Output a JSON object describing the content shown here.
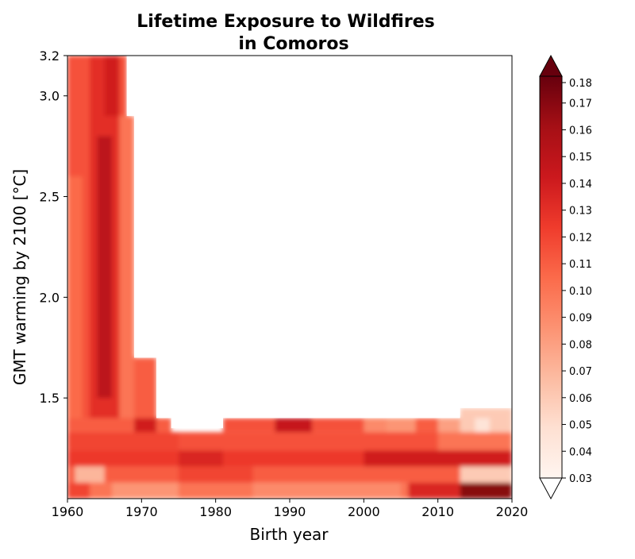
{
  "chart_data": {
    "type": "heatmap",
    "title_lines": [
      "Lifetime Exposure to Wildfires",
      "in Comoros"
    ],
    "xlabel": "Birth year",
    "ylabel": "GMT warming by 2100 [°C]",
    "xlim": [
      1960,
      2020
    ],
    "ylim": [
      1.0,
      3.2
    ],
    "x_ticks": [
      1960,
      1970,
      1980,
      1990,
      2000,
      2010,
      2020
    ],
    "x_tick_labels": [
      "1960",
      "1970",
      "1980",
      "1990",
      "2000",
      "2010",
      "2020"
    ],
    "y_ticks": [
      1.5,
      2.0,
      2.5,
      3.0,
      3.2
    ],
    "y_tick_labels": [
      "1.5",
      "2.0",
      "2.5",
      "3.0",
      "3.2"
    ],
    "colormap": "Reds",
    "colorbar": {
      "min": 0.03,
      "max": 0.18,
      "ticks": [
        0.03,
        0.04,
        0.05,
        0.06,
        0.07,
        0.08,
        0.09,
        0.1,
        0.11,
        0.12,
        0.13,
        0.14,
        0.15,
        0.16,
        0.17,
        0.18
      ],
      "tick_labels": [
        "0.03",
        "0.04",
        "0.05",
        "0.06",
        "0.07",
        "0.08",
        "0.09",
        "0.10",
        "0.11",
        "0.12",
        "0.13",
        "0.14",
        "0.15",
        "0.16",
        "0.17",
        "0.18"
      ],
      "extend": "both",
      "under_color": "#ffffff",
      "over_color": "#67000d"
    },
    "data_extent_note": "",
    "column_year_ranges": [
      [
        1960,
        1968,
        3.2
      ],
      [
        1968,
        1969,
        2.9
      ],
      [
        1969,
        1972,
        1.7
      ],
      [
        1972,
        1974,
        1.4
      ],
      [
        1974,
        1981,
        1.35
      ],
      [
        1981,
        2013,
        1.4
      ],
      [
        2013,
        2020,
        1.45
      ]
    ],
    "regions": [
      {
        "x": [
          1960,
          2020
        ],
        "y": [
          1.0,
          1.08
        ],
        "value": 0.1
      },
      {
        "x": [
          1960,
          1963
        ],
        "y": [
          1.0,
          1.08
        ],
        "value": 0.12
      },
      {
        "x": [
          1966,
          1975
        ],
        "y": [
          1.0,
          1.08
        ],
        "value": 0.085
      },
      {
        "x": [
          1985,
          2005
        ],
        "y": [
          1.0,
          1.08
        ],
        "value": 0.09
      },
      {
        "x": [
          2006,
          2013
        ],
        "y": [
          1.0,
          1.08
        ],
        "value": 0.135
      },
      {
        "x": [
          2013,
          2020
        ],
        "y": [
          1.0,
          1.08
        ],
        "value": 0.17
      },
      {
        "x": [
          1960,
          2020
        ],
        "y": [
          1.08,
          1.16
        ],
        "value": 0.11
      },
      {
        "x": [
          1961,
          1965
        ],
        "y": [
          1.08,
          1.16
        ],
        "value": 0.07
      },
      {
        "x": [
          1975,
          1985
        ],
        "y": [
          1.08,
          1.16
        ],
        "value": 0.12
      },
      {
        "x": [
          2013,
          2020
        ],
        "y": [
          1.08,
          1.16
        ],
        "value": 0.06
      },
      {
        "x": [
          1960,
          2020
        ],
        "y": [
          1.16,
          1.24
        ],
        "value": 0.125
      },
      {
        "x": [
          1975,
          1981
        ],
        "y": [
          1.16,
          1.24
        ],
        "value": 0.135
      },
      {
        "x": [
          2000,
          2020
        ],
        "y": [
          1.16,
          1.24
        ],
        "value": 0.14
      },
      {
        "x": [
          1960,
          2020
        ],
        "y": [
          1.24,
          1.33
        ],
        "value": 0.115
      },
      {
        "x": [
          1960,
          1975
        ],
        "y": [
          1.24,
          1.33
        ],
        "value": 0.12
      },
      {
        "x": [
          2010,
          2020
        ],
        "y": [
          1.24,
          1.33
        ],
        "value": 0.1
      },
      {
        "x": [
          1960,
          1974
        ],
        "y": [
          1.33,
          1.4
        ],
        "value": 0.11
      },
      {
        "x": [
          1981,
          2013
        ],
        "y": [
          1.33,
          1.4
        ],
        "value": 0.115
      },
      {
        "x": [
          1969,
          1972
        ],
        "y": [
          1.33,
          1.4
        ],
        "value": 0.14
      },
      {
        "x": [
          1988,
          1993
        ],
        "y": [
          1.33,
          1.4
        ],
        "value": 0.145
      },
      {
        "x": [
          2000,
          2003
        ],
        "y": [
          1.33,
          1.4
        ],
        "value": 0.09
      },
      {
        "x": [
          2003,
          2007
        ],
        "y": [
          1.33,
          1.4
        ],
        "value": 0.085
      },
      {
        "x": [
          2007,
          2010
        ],
        "y": [
          1.33,
          1.4
        ],
        "value": 0.11
      },
      {
        "x": [
          2010,
          2013
        ],
        "y": [
          1.33,
          1.4
        ],
        "value": 0.08
      },
      {
        "x": [
          2013,
          2020
        ],
        "y": [
          1.33,
          1.45
        ],
        "value": 0.06
      },
      {
        "x": [
          2015,
          2017
        ],
        "y": [
          1.33,
          1.4
        ],
        "value": 0.045
      },
      {
        "x": [
          1960,
          1968
        ],
        "y": [
          1.4,
          3.2
        ],
        "value": 0.115
      },
      {
        "x": [
          1960,
          1962
        ],
        "y": [
          1.4,
          2.6
        ],
        "value": 0.105
      },
      {
        "x": [
          1963,
          1967
        ],
        "y": [
          1.4,
          3.2
        ],
        "value": 0.13
      },
      {
        "x": [
          1964,
          1966
        ],
        "y": [
          1.5,
          2.8
        ],
        "value": 0.15
      },
      {
        "x": [
          1965,
          1967
        ],
        "y": [
          2.9,
          3.2
        ],
        "value": 0.14
      },
      {
        "x": [
          1967,
          1969
        ],
        "y": [
          1.4,
          2.9
        ],
        "value": 0.1
      },
      {
        "x": [
          1969,
          1972
        ],
        "y": [
          1.4,
          1.7
        ],
        "value": 0.11
      }
    ]
  }
}
